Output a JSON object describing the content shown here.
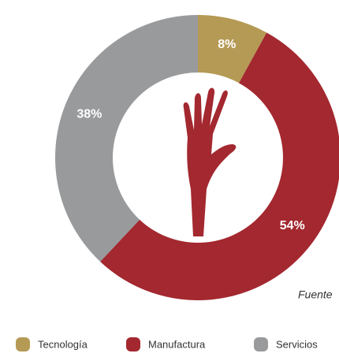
{
  "chart_data": {
    "type": "donut",
    "categories": [
      "Tecnología",
      "Manufactura",
      "Servicios"
    ],
    "values": [
      8,
      54,
      38
    ],
    "value_labels": [
      "8%",
      "54%",
      "38%"
    ],
    "colors": [
      "#b59a55",
      "#a3282f",
      "#999a9c"
    ],
    "source": "Fuente"
  }
}
